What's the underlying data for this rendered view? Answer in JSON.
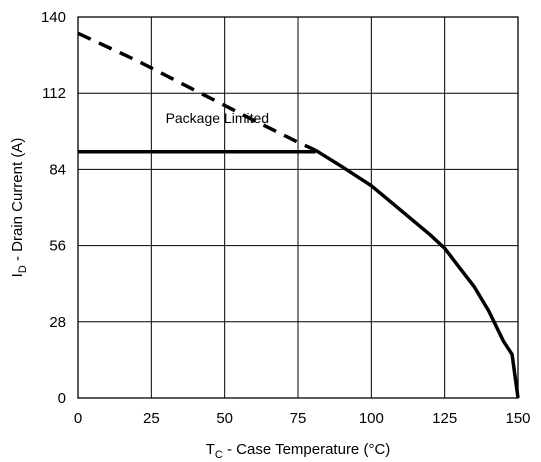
{
  "chart_data": {
    "type": "line",
    "title": "",
    "xlabel": {
      "main": "T",
      "sub": "C",
      "rest": " - Case Temperature (°C)"
    },
    "ylabel": {
      "main": "I",
      "sub": "D",
      "rest": " - Drain Current (A)"
    },
    "xlim": [
      0,
      150
    ],
    "ylim": [
      0,
      140
    ],
    "x_ticks": [
      "0",
      "25",
      "50",
      "75",
      "100",
      "125",
      "150"
    ],
    "y_ticks": [
      "0",
      "28",
      "56",
      "84",
      "112",
      "140"
    ],
    "grid": true,
    "series": [
      {
        "style": "dashed",
        "points": [
          [
            0,
            134
          ],
          [
            20,
            124
          ],
          [
            40,
            113
          ],
          [
            60,
            102
          ],
          [
            75,
            94
          ],
          [
            81,
            91
          ]
        ]
      },
      {
        "style": "solid",
        "points": [
          [
            81,
            91
          ],
          [
            90,
            85
          ],
          [
            100,
            78
          ],
          [
            110,
            69
          ],
          [
            120,
            60
          ],
          [
            125,
            55
          ],
          [
            130,
            48
          ],
          [
            135,
            41
          ],
          [
            140,
            32
          ],
          [
            145,
            21
          ],
          [
            148,
            16
          ],
          [
            150,
            0
          ]
        ]
      },
      {
        "style": "solid",
        "points": [
          [
            0,
            90.5
          ],
          [
            81,
            90.5
          ]
        ]
      }
    ],
    "annotations": [
      {
        "text": "Package Limited",
        "x": 47.5,
        "y": 101
      }
    ]
  }
}
